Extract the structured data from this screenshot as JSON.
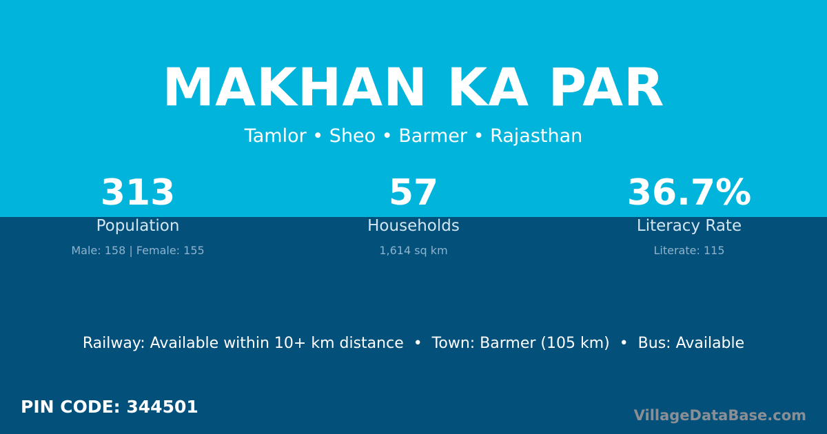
{
  "header": {
    "title": "MAKHAN KA PAR",
    "subtitle": "Tamlor • Sheo • Barmer • Rajasthan"
  },
  "stats": [
    {
      "value": "313",
      "label": "Population",
      "detail": "Male: 158 | Female: 155"
    },
    {
      "value": "57",
      "label": "Households",
      "detail": "1,614 sq km"
    },
    {
      "value": "36.7%",
      "label": "Literacy Rate",
      "detail": "Literate: 115"
    }
  ],
  "amenities": "Railway: Available within 10+ km distance  •  Town: Barmer (105 km)  •  Bus: Available",
  "pin_code": "PIN CODE: 344501",
  "brand": "VillageDataBase.com",
  "colors": {
    "top_background": "#00b4dc",
    "bottom_background": "#03507b"
  }
}
